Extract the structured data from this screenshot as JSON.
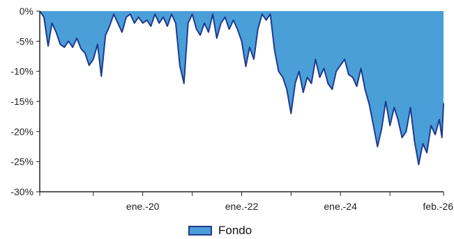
{
  "chart_data": {
    "type": "area",
    "title": "",
    "xlabel": "",
    "ylabel": "",
    "y_unit": "%",
    "x_range": [
      "2017-12",
      "2026-02"
    ],
    "ylim": [
      -30,
      0
    ],
    "y_ticks": [
      {
        "value": 0,
        "label": "0%"
      },
      {
        "value": -5,
        "label": "-5%"
      },
      {
        "value": -10,
        "label": "-10%"
      },
      {
        "value": -15,
        "label": "-15%"
      },
      {
        "value": -20,
        "label": "-20%"
      },
      {
        "value": -25,
        "label": "-25%"
      },
      {
        "value": -30,
        "label": "-30%"
      }
    ],
    "x_ticks": [
      {
        "value": "2020-01",
        "label": "ene.-20"
      },
      {
        "value": "2022-01",
        "label": "ene.-22"
      },
      {
        "value": "2024-01",
        "label": "ene.-24"
      },
      {
        "value": "2026-02",
        "label": "feb.-26"
      }
    ],
    "x_minor_ticks": [
      "2017-12",
      "2019-01",
      "2021-01",
      "2023-01",
      "2025-01",
      "2026-02"
    ],
    "grid": false,
    "legend_position": "bottom",
    "colors": {
      "area_fill": "#4a9fd8",
      "line": "#1f3a8f",
      "axis": "#222222"
    },
    "series": [
      {
        "name": "Fondo",
        "points": [
          [
            "2017-12",
            0.0
          ],
          [
            "2018-01",
            -1.0
          ],
          [
            "2018-02",
            -5.8
          ],
          [
            "2018-03",
            -2.0
          ],
          [
            "2018-04",
            -3.5
          ],
          [
            "2018-05",
            -5.5
          ],
          [
            "2018-06",
            -6.0
          ],
          [
            "2018-07",
            -5.0
          ],
          [
            "2018-08",
            -6.0
          ],
          [
            "2018-09",
            -4.5
          ],
          [
            "2018-10",
            -6.2
          ],
          [
            "2018-11",
            -7.0
          ],
          [
            "2018-12",
            -9.0
          ],
          [
            "2019-01",
            -8.0
          ],
          [
            "2019-02",
            -5.5
          ],
          [
            "2019-03",
            -10.8
          ],
          [
            "2019-04",
            -4.0
          ],
          [
            "2019-05",
            -2.5
          ],
          [
            "2019-06",
            -0.5
          ],
          [
            "2019-07",
            -2.0
          ],
          [
            "2019-08",
            -3.5
          ],
          [
            "2019-09",
            -1.0
          ],
          [
            "2019-10",
            -0.5
          ],
          [
            "2019-11",
            -2.0
          ],
          [
            "2019-12",
            -1.0
          ],
          [
            "2020-01",
            -2.0
          ],
          [
            "2020-02",
            -1.5
          ],
          [
            "2020-03",
            -2.5
          ],
          [
            "2020-04",
            -0.5
          ],
          [
            "2020-05",
            -2.0
          ],
          [
            "2020-06",
            -1.0
          ],
          [
            "2020-07",
            -2.5
          ],
          [
            "2020-08",
            -0.5
          ],
          [
            "2020-09",
            -2.0
          ],
          [
            "2020-10",
            -9.0
          ],
          [
            "2020-11",
            -12.0
          ],
          [
            "2020-12",
            -2.0
          ],
          [
            "2021-01",
            -0.5
          ],
          [
            "2021-02",
            -3.0
          ],
          [
            "2021-03",
            -4.0
          ],
          [
            "2021-04",
            -2.0
          ],
          [
            "2021-05",
            -3.5
          ],
          [
            "2021-06",
            -0.5
          ],
          [
            "2021-07",
            -4.5
          ],
          [
            "2021-08",
            -2.0
          ],
          [
            "2021-09",
            -1.0
          ],
          [
            "2021-10",
            -3.0
          ],
          [
            "2021-11",
            -1.5
          ],
          [
            "2021-12",
            -3.0
          ],
          [
            "2022-01",
            -5.0
          ],
          [
            "2022-02",
            -9.2
          ],
          [
            "2022-03",
            -6.0
          ],
          [
            "2022-04",
            -8.0
          ],
          [
            "2022-05",
            -3.0
          ],
          [
            "2022-06",
            -0.5
          ],
          [
            "2022-07",
            -1.5
          ],
          [
            "2022-08",
            -0.5
          ],
          [
            "2022-09",
            -6.5
          ],
          [
            "2022-10",
            -10.0
          ],
          [
            "2022-11",
            -11.0
          ],
          [
            "2022-12",
            -13.0
          ],
          [
            "2023-01",
            -17.0
          ],
          [
            "2023-02",
            -12.0
          ],
          [
            "2023-03",
            -10.0
          ],
          [
            "2023-04",
            -13.5
          ],
          [
            "2023-05",
            -11.0
          ],
          [
            "2023-06",
            -12.0
          ],
          [
            "2023-07",
            -8.0
          ],
          [
            "2023-08",
            -11.0
          ],
          [
            "2023-09",
            -9.5
          ],
          [
            "2023-10",
            -12.0
          ],
          [
            "2023-11",
            -13.0
          ],
          [
            "2023-12",
            -10.0
          ],
          [
            "2024-01",
            -9.0
          ],
          [
            "2024-02",
            -8.0
          ],
          [
            "2024-03",
            -10.5
          ],
          [
            "2024-04",
            -11.0
          ],
          [
            "2024-05",
            -12.5
          ],
          [
            "2024-06",
            -9.5
          ],
          [
            "2024-07",
            -13.0
          ],
          [
            "2024-08",
            -15.5
          ],
          [
            "2024-09",
            -19.0
          ],
          [
            "2024-10",
            -22.5
          ],
          [
            "2024-11",
            -19.5
          ],
          [
            "2024-12",
            -15.0
          ],
          [
            "2025-01",
            -19.0
          ],
          [
            "2025-02",
            -16.0
          ],
          [
            "2025-03",
            -18.0
          ],
          [
            "2025-04",
            -21.0
          ],
          [
            "2025-05",
            -20.0
          ],
          [
            "2025-06",
            -16.0
          ],
          [
            "2025-07",
            -21.5
          ],
          [
            "2025-08",
            -25.5
          ],
          [
            "2025-09",
            -22.0
          ],
          [
            "2025-10",
            -23.5
          ],
          [
            "2025-11",
            -19.0
          ],
          [
            "2025-12",
            -20.5
          ],
          [
            "2026-01",
            -18.0
          ],
          [
            "2026-01-20",
            -21.0
          ],
          [
            "2026-02",
            -15.3
          ]
        ]
      }
    ]
  }
}
